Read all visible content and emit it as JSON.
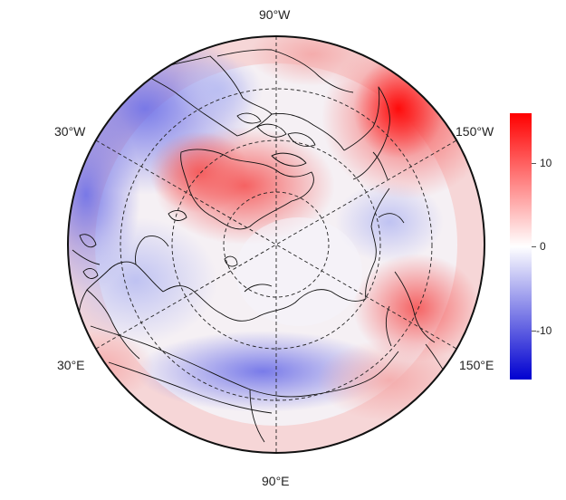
{
  "map": {
    "projection": "north polar stereographic",
    "longitude_labels": {
      "top": "90°W",
      "upper_left": "30°W",
      "upper_right": "150°W",
      "lower_left": "30°E",
      "lower_right": "150°E",
      "bottom": "90°E"
    }
  },
  "colorbar": {
    "colors": {
      "max": "#ff0000",
      "mid": "#ffffff",
      "min": "#0000d0"
    },
    "range": [
      -15,
      15
    ],
    "ticks": [
      {
        "value": 10,
        "label": "10"
      },
      {
        "value": 0,
        "label": "0"
      },
      {
        "value": -10,
        "label": "-10"
      }
    ]
  }
}
